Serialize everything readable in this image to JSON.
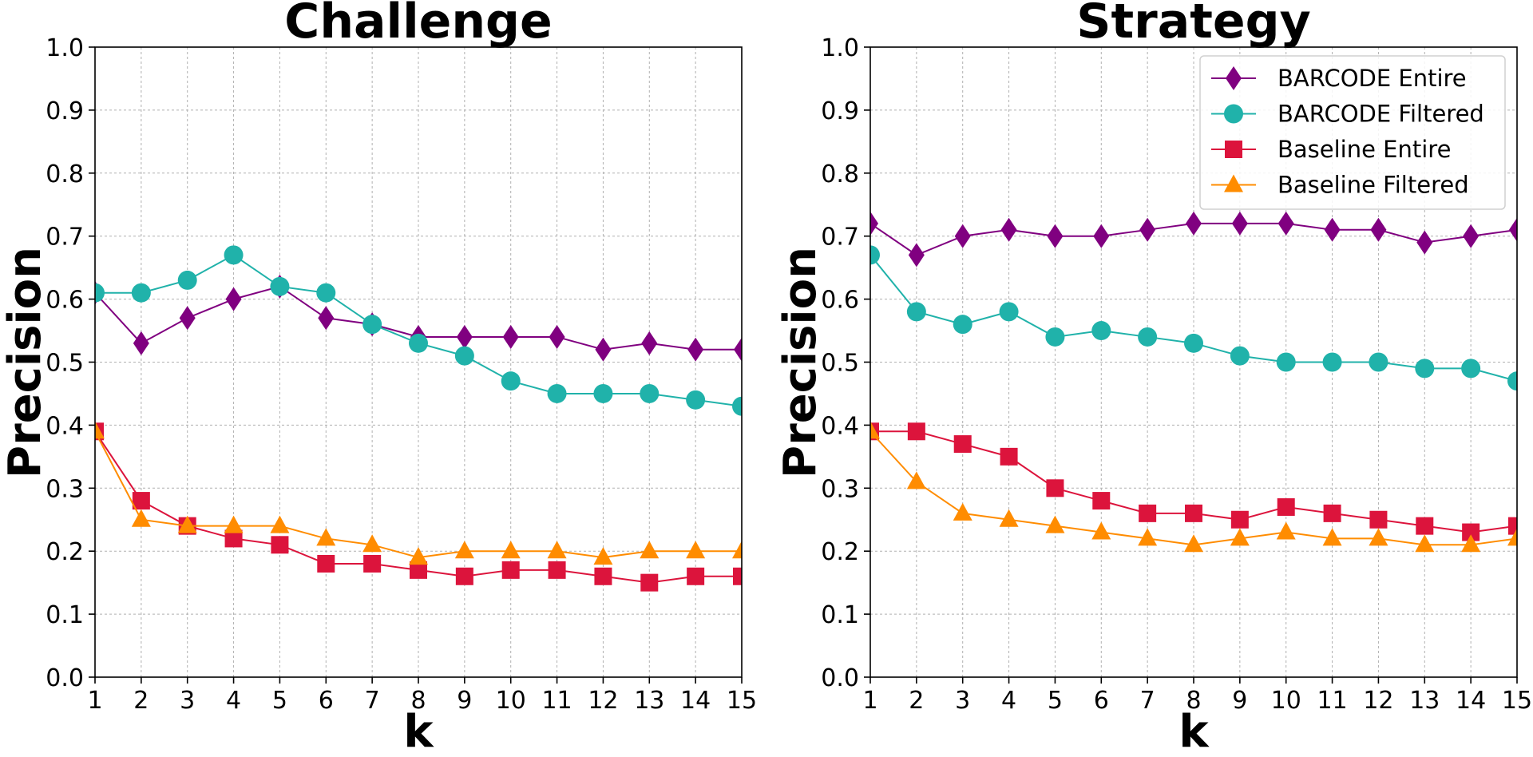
{
  "chart_data": [
    {
      "type": "line",
      "title": "Challenge",
      "xlabel": "k",
      "ylabel": "Precision",
      "x": [
        1,
        2,
        3,
        4,
        5,
        6,
        7,
        8,
        9,
        10,
        11,
        12,
        13,
        14,
        15
      ],
      "xlim": [
        1,
        15
      ],
      "ylim": [
        0.0,
        1.0
      ],
      "yticks": [
        "0.0",
        "0.1",
        "0.2",
        "0.3",
        "0.4",
        "0.5",
        "0.6",
        "0.7",
        "0.8",
        "0.9",
        "1.0"
      ],
      "grid": true,
      "series": [
        {
          "name": "BARCODE Entire",
          "color": "#800080",
          "marker": "diamond",
          "values": [
            0.61,
            0.53,
            0.57,
            0.6,
            0.62,
            0.57,
            0.56,
            0.54,
            0.54,
            0.54,
            0.54,
            0.52,
            0.53,
            0.52,
            0.52
          ]
        },
        {
          "name": "BARCODE Filtered",
          "color": "#20b2aa",
          "marker": "circle",
          "values": [
            0.61,
            0.61,
            0.63,
            0.67,
            0.62,
            0.61,
            0.56,
            0.53,
            0.51,
            0.47,
            0.45,
            0.45,
            0.45,
            0.44,
            0.43
          ]
        },
        {
          "name": "Baseline Entire",
          "color": "#dc143c",
          "marker": "square",
          "values": [
            0.39,
            0.28,
            0.24,
            0.22,
            0.21,
            0.18,
            0.18,
            0.17,
            0.16,
            0.17,
            0.17,
            0.16,
            0.15,
            0.16,
            0.16
          ]
        },
        {
          "name": "Baseline Filtered",
          "color": "#ff8c00",
          "marker": "triangle",
          "values": [
            0.39,
            0.25,
            0.24,
            0.24,
            0.24,
            0.22,
            0.21,
            0.19,
            0.2,
            0.2,
            0.2,
            0.19,
            0.2,
            0.2,
            0.2
          ]
        }
      ]
    },
    {
      "type": "line",
      "title": "Strategy",
      "xlabel": "k",
      "ylabel": "Precision",
      "x": [
        1,
        2,
        3,
        4,
        5,
        6,
        7,
        8,
        9,
        10,
        11,
        12,
        13,
        14,
        15
      ],
      "xlim": [
        1,
        15
      ],
      "ylim": [
        0.0,
        1.0
      ],
      "yticks": [
        "0.0",
        "0.1",
        "0.2",
        "0.3",
        "0.4",
        "0.5",
        "0.6",
        "0.7",
        "0.8",
        "0.9",
        "1.0"
      ],
      "grid": true,
      "legend": "top-right",
      "series": [
        {
          "name": "BARCODE Entire",
          "color": "#800080",
          "marker": "diamond",
          "values": [
            0.72,
            0.67,
            0.7,
            0.71,
            0.7,
            0.7,
            0.71,
            0.72,
            0.72,
            0.72,
            0.71,
            0.71,
            0.69,
            0.7,
            0.71
          ]
        },
        {
          "name": "BARCODE Filtered",
          "color": "#20b2aa",
          "marker": "circle",
          "values": [
            0.67,
            0.58,
            0.56,
            0.58,
            0.54,
            0.55,
            0.54,
            0.53,
            0.51,
            0.5,
            0.5,
            0.5,
            0.49,
            0.49,
            0.47
          ]
        },
        {
          "name": "Baseline Entire",
          "color": "#dc143c",
          "marker": "square",
          "values": [
            0.39,
            0.39,
            0.37,
            0.35,
            0.3,
            0.28,
            0.26,
            0.26,
            0.25,
            0.27,
            0.26,
            0.25,
            0.24,
            0.23,
            0.24
          ]
        },
        {
          "name": "Baseline Filtered",
          "color": "#ff8c00",
          "marker": "triangle",
          "values": [
            0.39,
            0.31,
            0.26,
            0.25,
            0.24,
            0.23,
            0.22,
            0.21,
            0.22,
            0.23,
            0.22,
            0.22,
            0.21,
            0.21,
            0.22
          ]
        }
      ]
    }
  ]
}
